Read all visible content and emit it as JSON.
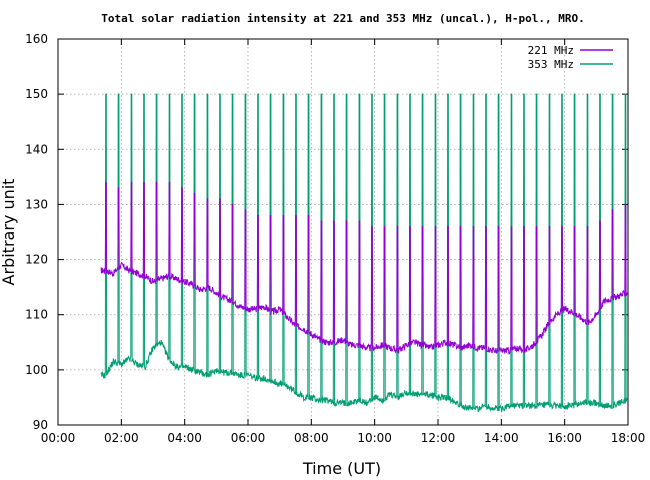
{
  "chart_data": {
    "type": "line",
    "title": "Total solar radiation intensity at 221 and 353 MHz (uncal.), H-pol., MRO.",
    "xlabel": "Time (UT)",
    "ylabel": "Arbitrary unit",
    "xlim": [
      0,
      18
    ],
    "ylim": [
      90,
      160
    ],
    "x_ticks": [
      "00:00",
      "02:00",
      "04:00",
      "06:00",
      "08:00",
      "10:00",
      "12:00",
      "14:00",
      "16:00",
      "18:00"
    ],
    "y_ticks": [
      "90",
      "100",
      "110",
      "120",
      "130",
      "140",
      "150",
      "160"
    ],
    "grid": true,
    "legend_position": "top-right",
    "series": [
      {
        "name": "221 MHz",
        "color": "#9400d3",
        "baseline": {
          "x": [
            1.35,
            1.5,
            1.75,
            2.0,
            2.25,
            2.5,
            2.75,
            3.0,
            3.25,
            3.5,
            3.75,
            4.0,
            4.25,
            4.5,
            4.75,
            5.0,
            5.25,
            5.5,
            5.75,
            6.0,
            6.25,
            6.5,
            6.75,
            7.0,
            7.25,
            7.5,
            7.75,
            8.0,
            8.25,
            8.5,
            8.75,
            9.0,
            9.25,
            9.5,
            9.75,
            10.0,
            10.25,
            10.5,
            10.75,
            11.0,
            11.25,
            11.5,
            11.75,
            12.0,
            12.25,
            12.5,
            12.75,
            13.0,
            13.25,
            13.5,
            13.75,
            14.0,
            14.25,
            14.5,
            14.75,
            15.0,
            15.25,
            15.5,
            15.75,
            16.0,
            16.25,
            16.5,
            16.75,
            17.0,
            17.25,
            17.5,
            17.75,
            18.0
          ],
          "y": [
            118.0,
            118.0,
            117.5,
            119.0,
            118.0,
            117.5,
            117.0,
            116.0,
            116.5,
            117.0,
            116.5,
            116.0,
            115.5,
            114.5,
            115.0,
            114.0,
            113.0,
            112.5,
            111.5,
            111.0,
            111.0,
            111.5,
            110.5,
            111.0,
            109.5,
            108.0,
            107.5,
            106.5,
            105.5,
            105.0,
            105.0,
            105.5,
            104.5,
            104.5,
            104.0,
            104.0,
            104.5,
            104.0,
            103.5,
            104.5,
            105.0,
            104.5,
            104.0,
            104.5,
            105.0,
            104.5,
            104.0,
            104.5,
            104.0,
            104.0,
            103.5,
            103.5,
            103.5,
            104.0,
            103.5,
            104.5,
            106.0,
            108.5,
            110.0,
            111.0,
            110.5,
            109.5,
            108.5,
            110.0,
            112.5,
            113.0,
            113.5,
            114.0
          ]
        },
        "spike_tops": [
          134,
          133,
          134,
          134,
          134,
          134,
          133,
          132,
          131,
          131,
          130,
          129,
          128,
          128,
          128,
          128,
          128,
          127,
          127,
          127,
          127,
          126,
          126,
          126,
          126,
          126,
          126,
          126,
          126,
          126,
          126,
          126,
          126,
          126,
          126,
          126,
          126,
          126,
          126,
          127,
          129,
          130,
          131,
          131
        ]
      },
      {
        "name": "353 MHz",
        "color": "#009e73",
        "baseline": {
          "x": [
            1.35,
            1.5,
            1.75,
            2.0,
            2.25,
            2.5,
            2.75,
            3.0,
            3.25,
            3.5,
            3.75,
            4.0,
            4.25,
            4.5,
            4.75,
            5.0,
            5.25,
            5.5,
            5.75,
            6.0,
            6.25,
            6.5,
            6.75,
            7.0,
            7.25,
            7.5,
            7.75,
            8.0,
            8.25,
            8.5,
            8.75,
            9.0,
            9.25,
            9.5,
            9.75,
            10.0,
            10.25,
            10.5,
            10.75,
            11.0,
            11.25,
            11.5,
            11.75,
            12.0,
            12.25,
            12.5,
            12.75,
            13.0,
            13.25,
            13.5,
            13.75,
            14.0,
            14.25,
            14.5,
            14.75,
            15.0,
            15.25,
            15.5,
            15.75,
            16.0,
            16.25,
            16.5,
            16.75,
            17.0,
            17.25,
            17.5,
            17.75,
            18.0
          ],
          "y": [
            99.0,
            99.0,
            101.5,
            101.0,
            102.0,
            101.0,
            100.5,
            104.0,
            105.0,
            102.0,
            100.5,
            100.5,
            100.0,
            99.5,
            99.0,
            100.0,
            99.5,
            99.5,
            99.0,
            99.0,
            98.5,
            98.5,
            98.0,
            97.5,
            97.0,
            96.0,
            95.0,
            95.0,
            94.5,
            94.5,
            94.0,
            94.0,
            94.0,
            94.5,
            94.0,
            95.0,
            94.5,
            95.5,
            95.0,
            96.0,
            95.5,
            95.5,
            95.5,
            95.0,
            95.0,
            94.5,
            93.5,
            93.0,
            93.0,
            93.5,
            93.0,
            93.0,
            93.5,
            93.5,
            93.5,
            93.5,
            93.5,
            93.5,
            93.5,
            93.5,
            93.5,
            94.0,
            94.0,
            94.0,
            93.5,
            93.5,
            94.0,
            94.5
          ]
        },
        "spike_tops": [
          150,
          150,
          150,
          150,
          150,
          150,
          150,
          150,
          150,
          150,
          150,
          150,
          150,
          150,
          150,
          150,
          150,
          150,
          150,
          150,
          150,
          150,
          150,
          150,
          150,
          150,
          150,
          150,
          150,
          150,
          150,
          150,
          150,
          150,
          150,
          150,
          150,
          150,
          150,
          150,
          150,
          150,
          150,
          150
        ]
      }
    ],
    "spike_interval_hours": 0.4,
    "spike_start_hour": 1.5
  }
}
